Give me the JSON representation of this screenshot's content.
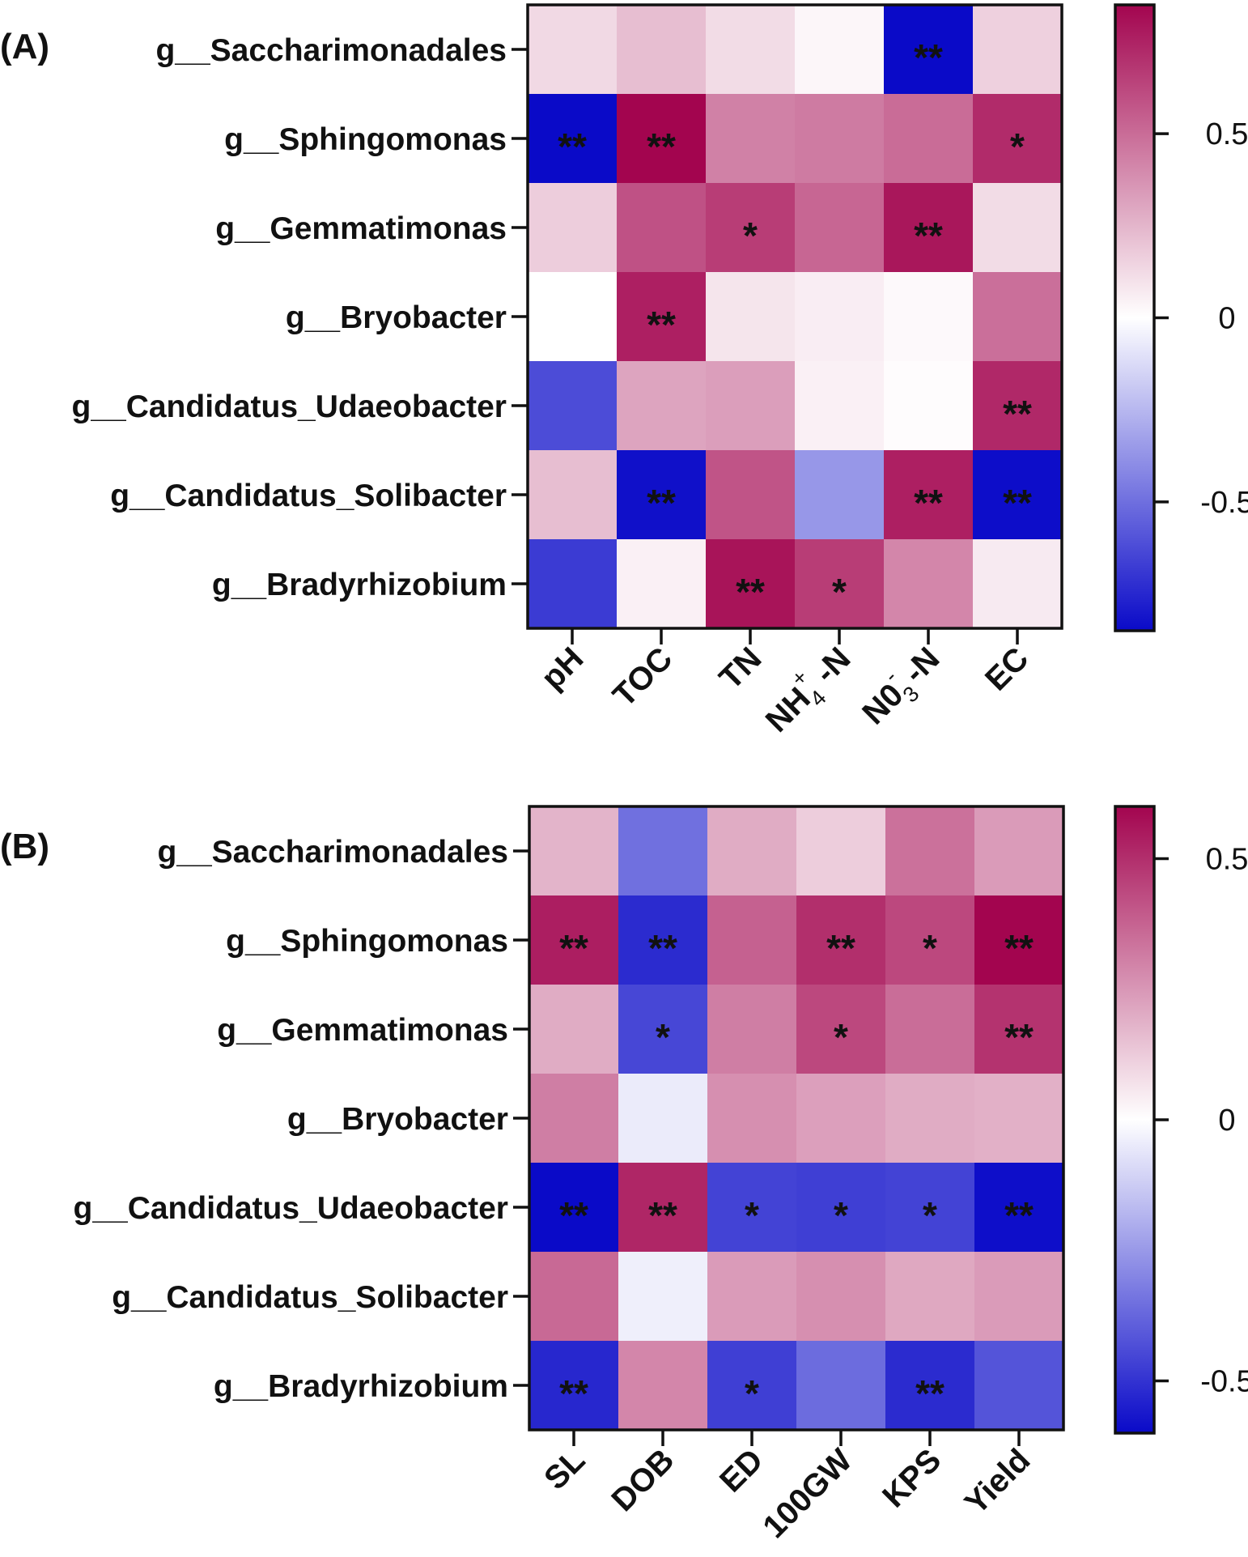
{
  "chart_data": [
    {
      "type": "heatmap",
      "panel_label": "(A)",
      "rows": [
        "g__Saccharimonadales",
        "g__Sphingomonas",
        "g__Gemmatimonas",
        "g__Bryobacter",
        "g__Candidatus_Udaeobacter",
        "g__Candidatus_Solibacter",
        "g__Bradyrhizobium"
      ],
      "columns": [
        "pH",
        "TOC",
        "TN",
        "NH4+-N",
        "N03--N",
        "EC"
      ],
      "column_labels": [
        {
          "main": "pH"
        },
        {
          "main": "TOC"
        },
        {
          "main": "TN"
        },
        {
          "main": "NH",
          "sub": "4",
          "sup": "+",
          "tail": " -N"
        },
        {
          "main": "N0",
          "sub": "3",
          "sup": "-",
          "tail": " -N"
        },
        {
          "main": "EC"
        }
      ],
      "values": [
        [
          0.13,
          0.22,
          0.12,
          0.03,
          -0.85,
          0.16
        ],
        [
          -0.86,
          0.86,
          0.43,
          0.45,
          0.5,
          0.72
        ],
        [
          0.17,
          0.59,
          0.66,
          0.52,
          0.79,
          0.12
        ],
        [
          0.0,
          0.76,
          0.09,
          0.06,
          0.02,
          0.49
        ],
        [
          -0.62,
          0.31,
          0.33,
          0.05,
          0.01,
          0.73
        ],
        [
          0.22,
          -0.83,
          0.58,
          -0.36,
          0.76,
          -0.84
        ],
        [
          -0.68,
          0.05,
          0.8,
          0.66,
          0.41,
          0.07
        ]
      ],
      "significance": [
        [
          "",
          "",
          "",
          "",
          "**",
          ""
        ],
        [
          "**",
          "**",
          "",
          "",
          "",
          "*"
        ],
        [
          "",
          "",
          "*",
          "",
          "**",
          ""
        ],
        [
          "",
          "**",
          "",
          "",
          "",
          ""
        ],
        [
          "",
          "",
          "",
          "",
          "",
          "**"
        ],
        [
          "",
          "**",
          "",
          "",
          "**",
          "**"
        ],
        [
          "",
          "",
          "**",
          "*",
          "",
          ""
        ]
      ],
      "colorbar": {
        "range": [
          -0.85,
          0.85
        ],
        "ticks": [
          -0.5,
          0,
          0.5
        ],
        "tick_labels": [
          "-0.5",
          "0",
          "0.5"
        ],
        "colors": {
          "low": "#0a0ac8",
          "mid": "#ffffff",
          "high": "#a3054f"
        }
      }
    },
    {
      "type": "heatmap",
      "panel_label": "(B)",
      "rows": [
        "g__Saccharimonadales",
        "g__Sphingomonas",
        "g__Gemmatimonas",
        "g__Bryobacter",
        "g__Candidatus_Udaeobacter",
        "g__Candidatus_Solibacter",
        "g__Bradyrhizobium"
      ],
      "columns": [
        "SL",
        "DOB",
        "ED",
        "100GW",
        "KPS",
        "Yield"
      ],
      "column_labels": [
        {
          "main": "SL"
        },
        {
          "main": "DOB"
        },
        {
          "main": "ED"
        },
        {
          "main": "100GW"
        },
        {
          "main": "KPS"
        },
        {
          "main": "Yield"
        }
      ],
      "values": [
        [
          0.18,
          -0.35,
          0.2,
          0.12,
          0.34,
          0.24
        ],
        [
          0.54,
          -0.52,
          0.38,
          0.5,
          0.44,
          0.6
        ],
        [
          0.2,
          -0.45,
          0.31,
          0.44,
          0.35,
          0.49
        ],
        [
          0.31,
          -0.05,
          0.27,
          0.23,
          0.2,
          0.19
        ],
        [
          -0.61,
          0.52,
          -0.46,
          -0.47,
          -0.46,
          -0.59
        ],
        [
          0.36,
          -0.04,
          0.24,
          0.27,
          0.21,
          0.24
        ],
        [
          -0.53,
          0.29,
          -0.47,
          -0.36,
          -0.52,
          -0.42
        ]
      ],
      "significance": [
        [
          "",
          "",
          "",
          "",
          "",
          ""
        ],
        [
          "**",
          "**",
          "",
          "**",
          "*",
          "**"
        ],
        [
          "",
          "*",
          "",
          "*",
          "",
          "**"
        ],
        [
          "",
          "",
          "",
          "",
          "",
          ""
        ],
        [
          "**",
          "**",
          "*",
          "*",
          "*",
          "**"
        ],
        [
          "",
          "",
          "",
          "",
          "",
          ""
        ],
        [
          "**",
          "",
          "*",
          "",
          "**",
          ""
        ]
      ],
      "colorbar": {
        "range": [
          -0.6,
          0.6
        ],
        "ticks": [
          -0.5,
          0,
          0.5
        ],
        "tick_labels": [
          "-0.5",
          "0",
          "0.5"
        ],
        "colors": {
          "low": "#0a0ac8",
          "mid": "#ffffff",
          "high": "#a3054f"
        }
      }
    }
  ]
}
